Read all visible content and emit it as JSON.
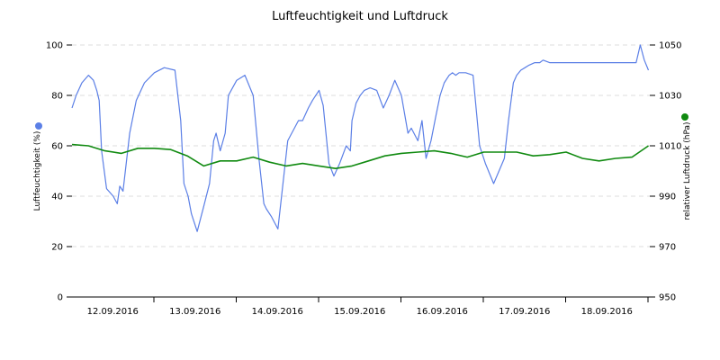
{
  "chart_data": {
    "type": "line",
    "title": "Luftfeuchtigkeit und Luftdruck",
    "x_tick_labels": [
      "12.09.2016",
      "13.09.2016",
      "14.09.2016",
      "15.09.2016",
      "16.09.2016",
      "17.09.2016",
      "18.09.2016"
    ],
    "x_range_days": [
      0,
      7
    ],
    "y_left": {
      "label": "Luftfeuchtigkeit (%)",
      "range": [
        0,
        100
      ],
      "ticks": [
        0,
        20,
        40,
        60,
        80,
        100
      ]
    },
    "y_right": {
      "label": "relativer Luftdruck (hPa)",
      "range": [
        950,
        1050
      ],
      "ticks": [
        950,
        970,
        990,
        1010,
        1030,
        1050
      ]
    },
    "grid": true,
    "series": [
      {
        "name": "Luftfeuchtigkeit",
        "axis": "left",
        "color": "#5b7fe6",
        "x": [
          0,
          0.05,
          0.12,
          0.2,
          0.26,
          0.3,
          0.33,
          0.36,
          0.42,
          0.5,
          0.55,
          0.58,
          0.62,
          0.7,
          0.78,
          0.88,
          1.0,
          1.12,
          1.25,
          1.32,
          1.36,
          1.41,
          1.45,
          1.52,
          1.6,
          1.67,
          1.72,
          1.75,
          1.8,
          1.86,
          1.9,
          2.0,
          2.1,
          2.2,
          2.27,
          2.33,
          2.36,
          2.42,
          2.5,
          2.62,
          2.75,
          2.8,
          2.87,
          2.92,
          3.0,
          3.05,
          3.12,
          3.18,
          3.25,
          3.33,
          3.38,
          3.4,
          3.45,
          3.5,
          3.55,
          3.62,
          3.7,
          3.78,
          3.85,
          3.92,
          4.0,
          4.08,
          4.12,
          4.2,
          4.25,
          4.3,
          4.36,
          4.42,
          4.47,
          4.52,
          4.58,
          4.62,
          4.66,
          4.7,
          4.78,
          4.87,
          4.95,
          5.02,
          5.12,
          5.25,
          5.3,
          5.36,
          5.4,
          5.45,
          5.5,
          5.55,
          5.62,
          5.68,
          5.72,
          5.8,
          5.9,
          6.0,
          6.1,
          6.25,
          6.4,
          6.5,
          6.6,
          6.7,
          6.75,
          6.8,
          6.85,
          6.9,
          6.95,
          7.0
        ],
        "values": [
          75,
          80,
          85,
          88,
          86,
          82,
          78,
          58,
          43,
          40,
          37,
          44,
          42,
          65,
          78,
          85,
          89,
          91,
          90,
          70,
          45,
          40,
          33,
          26,
          36,
          45,
          62,
          65,
          58,
          65,
          80,
          86,
          88,
          80,
          55,
          37,
          35,
          32,
          27,
          62,
          70,
          70,
          75,
          78,
          82,
          76,
          53,
          48,
          53,
          60,
          58,
          70,
          77,
          80,
          82,
          83,
          82,
          75,
          80,
          86,
          80,
          65,
          67,
          62,
          70,
          55,
          62,
          72,
          80,
          85,
          88,
          89,
          88,
          89,
          89,
          88,
          60,
          53,
          45,
          55,
          70,
          85,
          88,
          90,
          91,
          92,
          93,
          93,
          94,
          93,
          93,
          93,
          93,
          93,
          93,
          93,
          93,
          93,
          93,
          93,
          93,
          100,
          94,
          90
        ]
      },
      {
        "name": "relativer Luftdruck",
        "axis": "right",
        "color": "#108a10",
        "x": [
          0,
          0.2,
          0.4,
          0.6,
          0.8,
          1.0,
          1.2,
          1.4,
          1.6,
          1.8,
          2.0,
          2.2,
          2.4,
          2.6,
          2.8,
          3.0,
          3.2,
          3.4,
          3.6,
          3.8,
          4.0,
          4.2,
          4.4,
          4.6,
          4.8,
          5.0,
          5.2,
          5.4,
          5.6,
          5.8,
          6.0,
          6.2,
          6.4,
          6.6,
          6.8,
          7.0
        ],
        "values": [
          1010.5,
          1010,
          1008,
          1007,
          1009,
          1009,
          1008.5,
          1006,
          1002,
          1004,
          1004,
          1005.5,
          1003.5,
          1002,
          1003,
          1002,
          1001,
          1002,
          1004,
          1006,
          1007,
          1007.5,
          1008,
          1007,
          1005.5,
          1007.5,
          1007.5,
          1007.5,
          1006,
          1006.5,
          1007.5,
          1005,
          1004,
          1005,
          1005.5,
          1010
        ]
      }
    ]
  }
}
